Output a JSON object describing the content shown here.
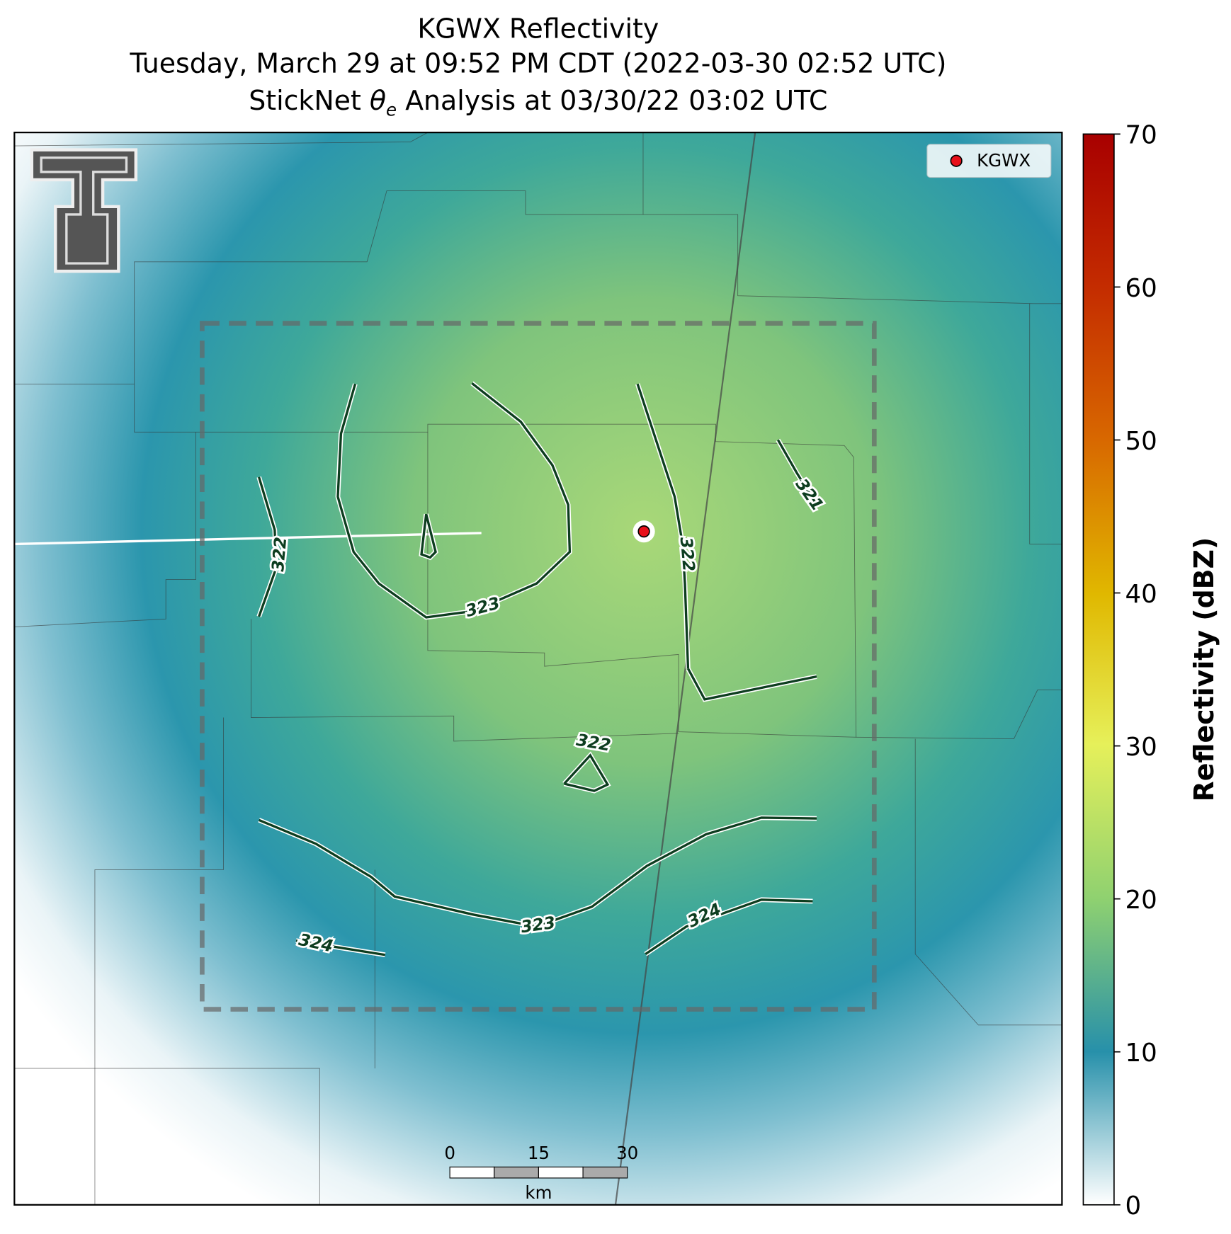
{
  "header": {
    "title_line1": "KGWX Reflectivity",
    "title_line2": "Tuesday, March 29 at 09:52 PM CDT (2022-03-30 02:52 UTC)",
    "title_line3": {
      "before": "StickNet",
      "symbol": "θ",
      "subscript": "e",
      "after": "Analysis at 03/30/22 03:02 UTC"
    }
  },
  "legend": {
    "label": "KGWX",
    "color": "#e8101a"
  },
  "contours": [
    {
      "label": 322
    },
    {
      "label": 323
    },
    {
      "label": 322
    },
    {
      "label": 321
    },
    {
      "label": 322
    },
    {
      "label": 323
    },
    {
      "label": 324
    },
    {
      "label": 324
    }
  ],
  "scale_bar": {
    "ticks": [
      0,
      15,
      30
    ],
    "unit": "km"
  },
  "colorbar": {
    "label": "Reflectivity (dBZ)",
    "lim": [
      0,
      70
    ],
    "ticks": [
      0,
      10,
      20,
      30,
      40,
      50,
      60,
      70
    ]
  }
}
